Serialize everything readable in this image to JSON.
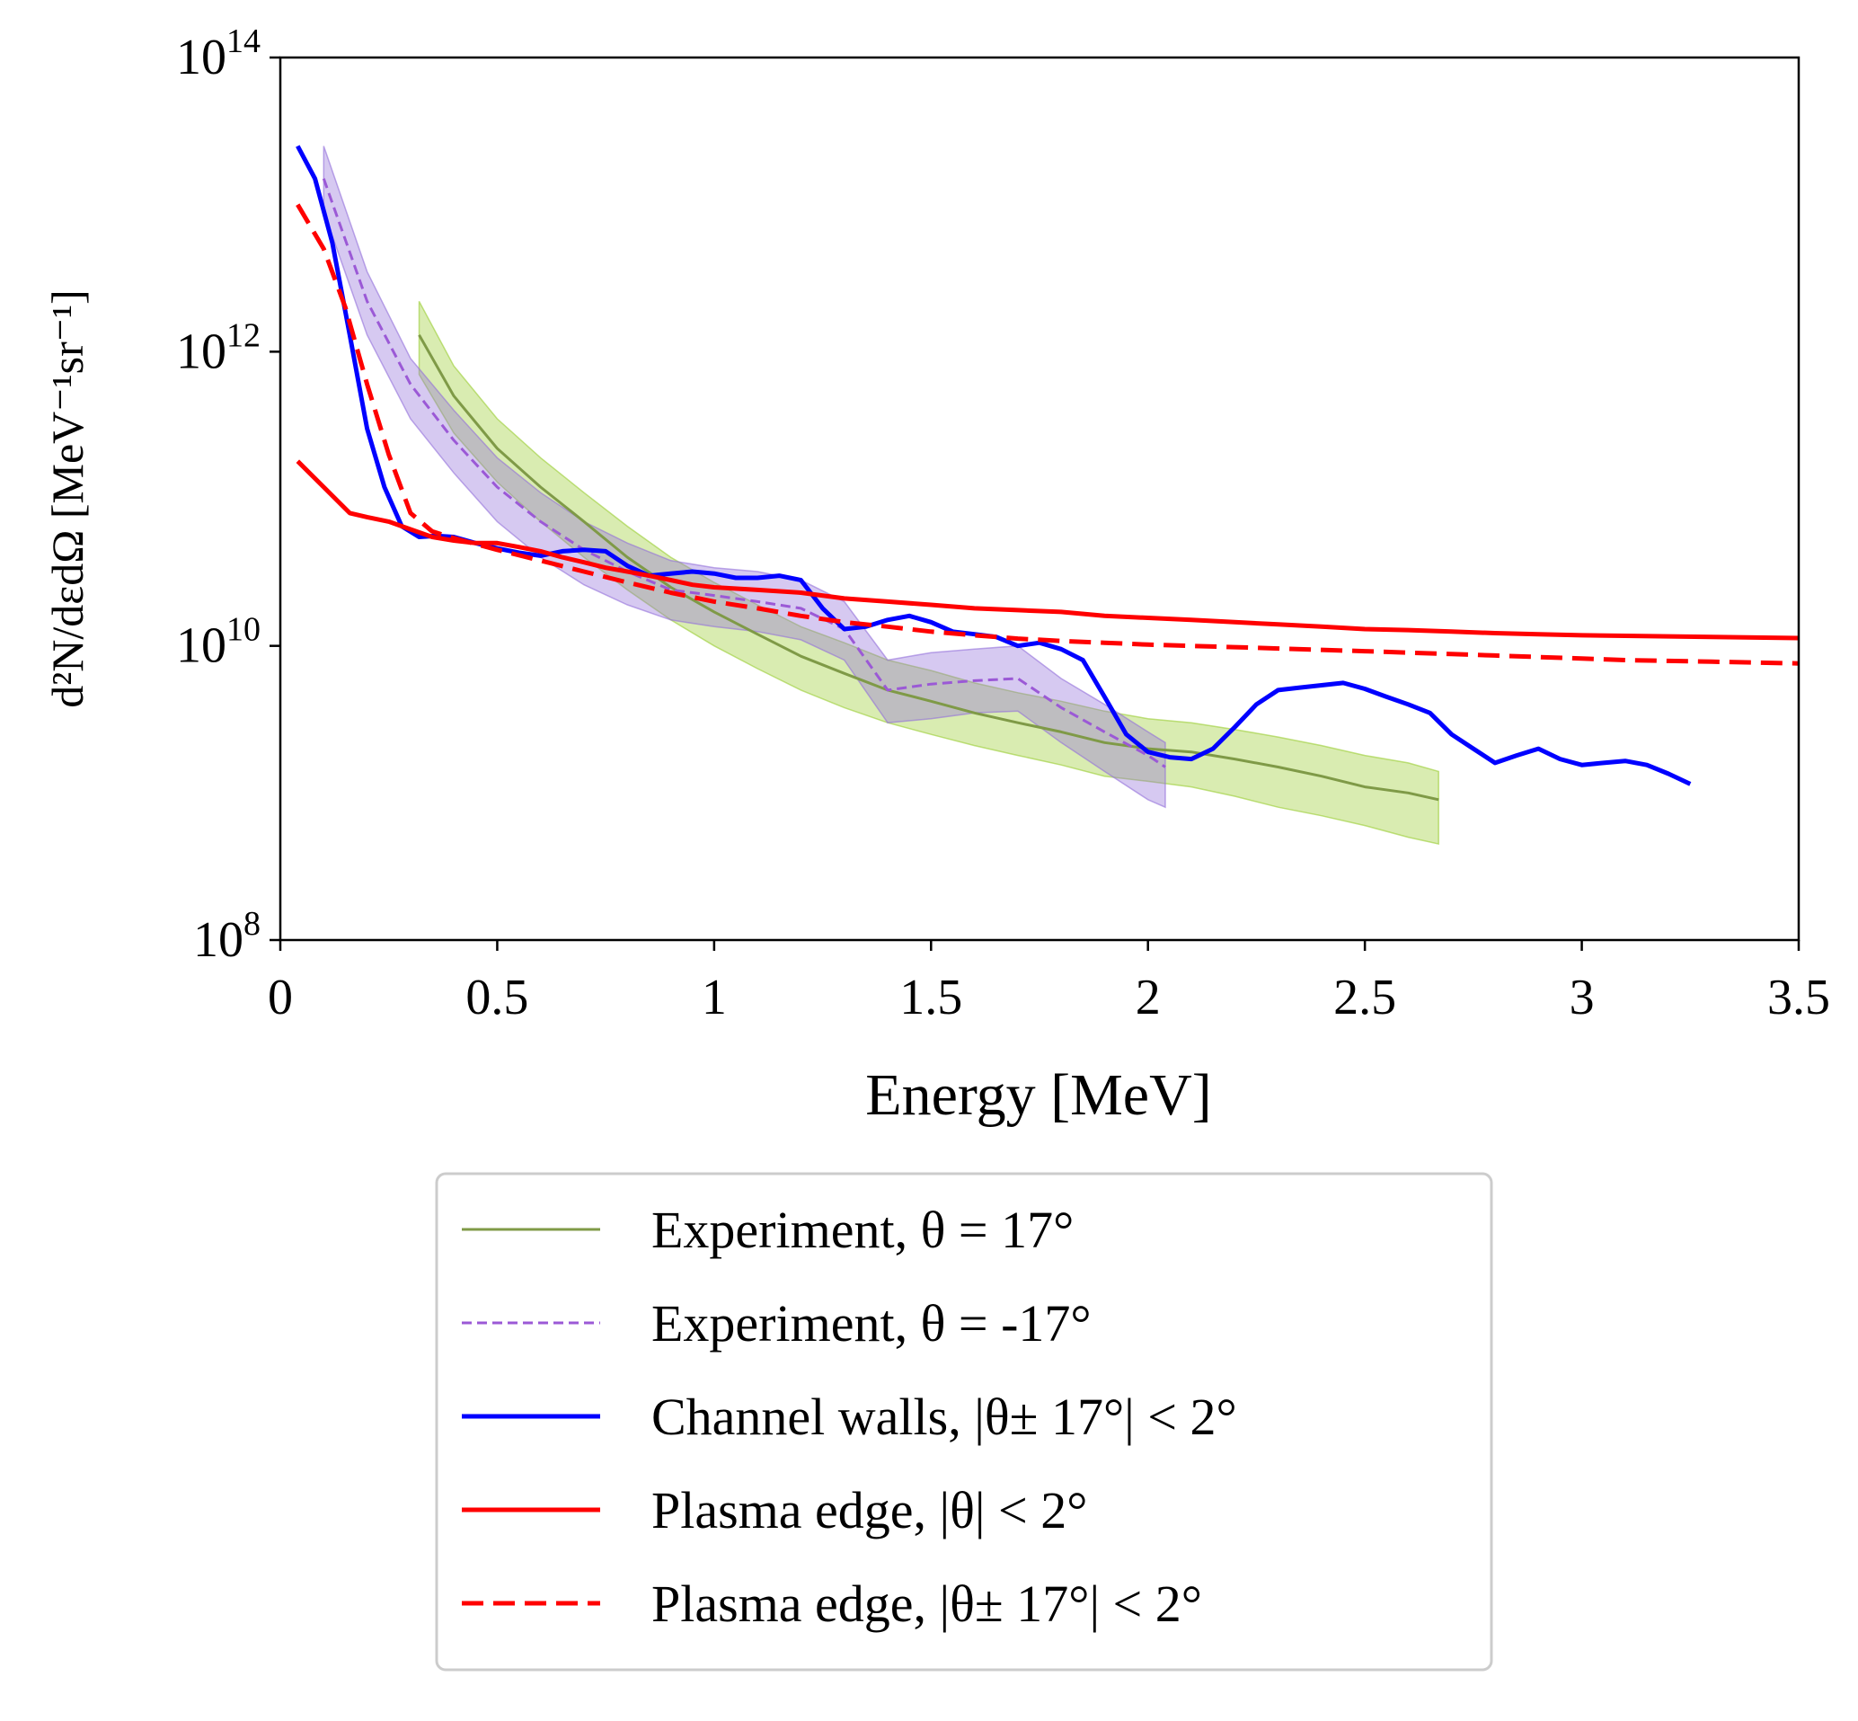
{
  "chart_data": {
    "type": "line",
    "title": "",
    "xlabel": "Energy [MeV]",
    "ylabel": "d²N/dεdΩ [MeV⁻¹sr⁻¹]",
    "xlim": [
      0,
      3.5
    ],
    "ylim": [
      100000000.0,
      100000000000000.0
    ],
    "yscale": "log",
    "grid": false,
    "legend_position": "below",
    "x_ticks": [
      {
        "value": 0,
        "label": "0"
      },
      {
        "value": 0.5,
        "label": "0.5"
      },
      {
        "value": 1,
        "label": "1"
      },
      {
        "value": 1.5,
        "label": "1.5"
      },
      {
        "value": 2,
        "label": "2"
      },
      {
        "value": 2.5,
        "label": "2.5"
      },
      {
        "value": 3,
        "label": "3"
      },
      {
        "value": 3.5,
        "label": "3.5"
      }
    ],
    "y_ticks": [
      {
        "value": 100000000.0,
        "base": "10",
        "exp": "8"
      },
      {
        "value": 10000000000.0,
        "base": "10",
        "exp": "10"
      },
      {
        "value": 1000000000000.0,
        "base": "10",
        "exp": "12"
      },
      {
        "value": 100000000000000.0,
        "base": "10",
        "exp": "14"
      }
    ],
    "series": [
      {
        "name": "Experiment, θ = 17°",
        "color": "#7f9a47",
        "band_color": "#9acd32",
        "style": "solid",
        "x": [
          0.32,
          0.4,
          0.5,
          0.6,
          0.7,
          0.8,
          0.9,
          1.0,
          1.1,
          1.2,
          1.3,
          1.4,
          1.5,
          1.6,
          1.7,
          1.8,
          1.9,
          2.0,
          2.1,
          2.2,
          2.3,
          2.4,
          2.5,
          2.6,
          2.67
        ],
        "y": [
          1300000000000.0,
          500000000000.0,
          220000000000.0,
          120000000000.0,
          70000000000.0,
          40000000000.0,
          25000000000.0,
          17000000000.0,
          12000000000.0,
          8500000000.0,
          6500000000.0,
          5000000000.0,
          4200000000.0,
          3500000000.0,
          3000000000.0,
          2600000000.0,
          2200000000.0,
          2000000000.0,
          1900000000.0,
          1700000000.0,
          1500000000.0,
          1300000000.0,
          1100000000.0,
          1000000000.0,
          900000000.0
        ],
        "y_low": [
          700000000000.0,
          280000000000.0,
          130000000000.0,
          70000000000.0,
          40000000000.0,
          24000000000.0,
          15000000000.0,
          10000000000.0,
          7000000000.0,
          5000000000.0,
          3800000000.0,
          3000000000.0,
          2500000000.0,
          2100000000.0,
          1800000000.0,
          1550000000.0,
          1300000000.0,
          1200000000.0,
          1100000000.0,
          950000000.0,
          800000000.0,
          700000000.0,
          600000000.0,
          500000000.0,
          450000000.0
        ],
        "y_high": [
          2200000000000.0,
          800000000000.0,
          350000000000.0,
          190000000000.0,
          110000000000.0,
          65000000000.0,
          40000000000.0,
          27000000000.0,
          19000000000.0,
          13500000000.0,
          10500000000.0,
          8000000000.0,
          6800000000.0,
          5600000000.0,
          4800000000.0,
          4200000000.0,
          3600000000.0,
          3200000000.0,
          3000000000.0,
          2700000000.0,
          2400000000.0,
          2100000000.0,
          1800000000.0,
          1600000000.0,
          1400000000.0
        ]
      },
      {
        "name": "Experiment, θ = -17°",
        "color": "#9b59d6",
        "band_color": "#9370db",
        "style": "dashed-fine",
        "x": [
          0.1,
          0.2,
          0.3,
          0.4,
          0.5,
          0.6,
          0.7,
          0.8,
          0.9,
          1.0,
          1.1,
          1.2,
          1.3,
          1.4,
          1.5,
          1.6,
          1.7,
          1.8,
          1.9,
          2.0,
          2.04
        ],
        "y": [
          15000000000000.0,
          2200000000000.0,
          600000000000.0,
          250000000000.0,
          120000000000.0,
          70000000000.0,
          45000000000.0,
          32000000000.0,
          24000000000.0,
          22000000000.0,
          20000000000.0,
          18000000000.0,
          13000000000.0,
          5000000000.0,
          5500000000.0,
          5800000000.0,
          6000000000.0,
          3800000000.0,
          2600000000.0,
          1800000000.0,
          1500000000.0
        ],
        "y_low": [
          9000000000000.0,
          1300000000000.0,
          350000000000.0,
          150000000000.0,
          70000000000.0,
          40000000000.0,
          26000000000.0,
          19000000000.0,
          15000000000.0,
          13500000000.0,
          12500000000.0,
          11000000000.0,
          8000000000.0,
          3000000000.0,
          3200000000.0,
          3500000000.0,
          3600000000.0,
          2200000000.0,
          1400000000.0,
          900000000.0,
          800000000.0
        ],
        "y_high": [
          25000000000000.0,
          3500000000000.0,
          900000000000.0,
          400000000000.0,
          190000000000.0,
          110000000000.0,
          70000000000.0,
          50000000000.0,
          38000000000.0,
          34000000000.0,
          32000000000.0,
          28000000000.0,
          20000000000.0,
          8000000000.0,
          9000000000.0,
          9500000000.0,
          10000000000.0,
          6000000000.0,
          4000000000.0,
          2600000000.0,
          2200000000.0
        ]
      },
      {
        "name": "Channel walls, |θ± 17°| < 2°",
        "color": "#0000ff",
        "style": "solid",
        "x": [
          0.04,
          0.08,
          0.12,
          0.16,
          0.2,
          0.24,
          0.28,
          0.32,
          0.36,
          0.4,
          0.45,
          0.5,
          0.55,
          0.6,
          0.65,
          0.7,
          0.75,
          0.8,
          0.85,
          0.9,
          0.95,
          1.0,
          1.05,
          1.1,
          1.15,
          1.2,
          1.25,
          1.3,
          1.35,
          1.4,
          1.45,
          1.5,
          1.55,
          1.6,
          1.65,
          1.7,
          1.75,
          1.8,
          1.85,
          1.9,
          1.95,
          2.0,
          2.05,
          2.1,
          2.15,
          2.2,
          2.25,
          2.3,
          2.35,
          2.4,
          2.45,
          2.5,
          2.55,
          2.6,
          2.65,
          2.7,
          2.75,
          2.8,
          2.85,
          2.9,
          2.95,
          3.0,
          3.05,
          3.1,
          3.15,
          3.2,
          3.25
        ],
        "y": [
          25000000000000.0,
          15000000000000.0,
          5500000000000.0,
          1300000000000.0,
          300000000000.0,
          120000000000.0,
          65000000000.0,
          55000000000.0,
          56000000000.0,
          55000000000.0,
          50000000000.0,
          46000000000.0,
          43000000000.0,
          41000000000.0,
          44000000000.0,
          45000000000.0,
          44000000000.0,
          35000000000.0,
          30000000000.0,
          31000000000.0,
          32000000000.0,
          31000000000.0,
          29000000000.0,
          29000000000.0,
          30000000000.0,
          28000000000.0,
          18000000000.0,
          13000000000.0,
          13500000000.0,
          15000000000.0,
          16000000000.0,
          14500000000.0,
          12500000000.0,
          12000000000.0,
          11500000000.0,
          10000000000.0,
          10500000000.0,
          9500000000.0,
          8000000000.0,
          4500000000.0,
          2500000000.0,
          1900000000.0,
          1750000000.0,
          1700000000.0,
          2000000000.0,
          2800000000.0,
          4000000000.0,
          5000000000.0,
          5200000000.0,
          5400000000.0,
          5600000000.0,
          5100000000.0,
          4500000000.0,
          4000000000.0,
          3500000000.0,
          2500000000.0,
          2000000000.0,
          1600000000.0,
          1800000000.0,
          2000000000.0,
          1700000000.0,
          1550000000.0,
          1600000000.0,
          1650000000.0,
          1550000000.0,
          1350000000.0,
          1150000000.0
        ]
      },
      {
        "name": "Plasma edge, |θ| < 2°",
        "color": "#ff0000",
        "style": "solid",
        "x": [
          0.04,
          0.1,
          0.16,
          0.2,
          0.25,
          0.3,
          0.35,
          0.4,
          0.45,
          0.5,
          0.55,
          0.6,
          0.65,
          0.7,
          0.75,
          0.8,
          0.85,
          0.9,
          0.95,
          1.0,
          1.1,
          1.2,
          1.3,
          1.4,
          1.5,
          1.6,
          1.7,
          1.8,
          1.9,
          2.0,
          2.1,
          2.2,
          2.3,
          2.4,
          2.5,
          2.6,
          2.7,
          2.8,
          2.9,
          3.0,
          3.1,
          3.2,
          3.3,
          3.4,
          3.5
        ],
        "y": [
          180000000000.0,
          120000000000.0,
          80000000000.0,
          75000000000.0,
          70000000000.0,
          62000000000.0,
          55000000000.0,
          52000000000.0,
          50000000000.0,
          50000000000.0,
          47000000000.0,
          44000000000.0,
          40000000000.0,
          37000000000.0,
          34000000000.0,
          32000000000.0,
          30000000000.0,
          28000000000.0,
          26000000000.0,
          25000000000.0,
          24000000000.0,
          23000000000.0,
          21000000000.0,
          20000000000.0,
          19000000000.0,
          18000000000.0,
          17500000000.0,
          17000000000.0,
          16000000000.0,
          15500000000.0,
          15000000000.0,
          14500000000.0,
          14000000000.0,
          13500000000.0,
          13000000000.0,
          12800000000.0,
          12500000000.0,
          12200000000.0,
          12000000000.0,
          11800000000.0,
          11700000000.0,
          11600000000.0,
          11500000000.0,
          11400000000.0,
          11300000000.0
        ]
      },
      {
        "name": "Plasma edge, |θ± 17°| < 2°",
        "color": "#ff0000",
        "style": "dashed",
        "x": [
          0.04,
          0.1,
          0.15,
          0.2,
          0.25,
          0.3,
          0.35,
          0.4,
          0.5,
          0.6,
          0.7,
          0.8,
          0.9,
          1.0,
          1.1,
          1.2,
          1.3,
          1.4,
          1.5,
          1.6,
          1.7,
          1.8,
          1.9,
          2.0,
          2.1,
          2.2,
          2.3,
          2.4,
          2.5,
          2.6,
          2.7,
          2.8,
          2.9,
          3.0,
          3.1,
          3.2,
          3.3,
          3.4,
          3.5
        ],
        "y": [
          10000000000000.0,
          5000000000000.0,
          2000000000000.0,
          600000000000.0,
          200000000000.0,
          80000000000.0,
          60000000000.0,
          54000000000.0,
          45000000000.0,
          38000000000.0,
          32000000000.0,
          27000000000.0,
          23000000000.0,
          20000000000.0,
          18000000000.0,
          16000000000.0,
          14500000000.0,
          13500000000.0,
          12500000000.0,
          11800000000.0,
          11200000000.0,
          10800000000.0,
          10500000000.0,
          10200000000.0,
          10000000000.0,
          9800000000.0,
          9600000000.0,
          9400000000.0,
          9200000000.0,
          9000000000.0,
          8800000000.0,
          8600000000.0,
          8400000000.0,
          8200000000.0,
          8000000000.0,
          7900000000.0,
          7800000000.0,
          7700000000.0,
          7600000000.0
        ]
      }
    ]
  }
}
